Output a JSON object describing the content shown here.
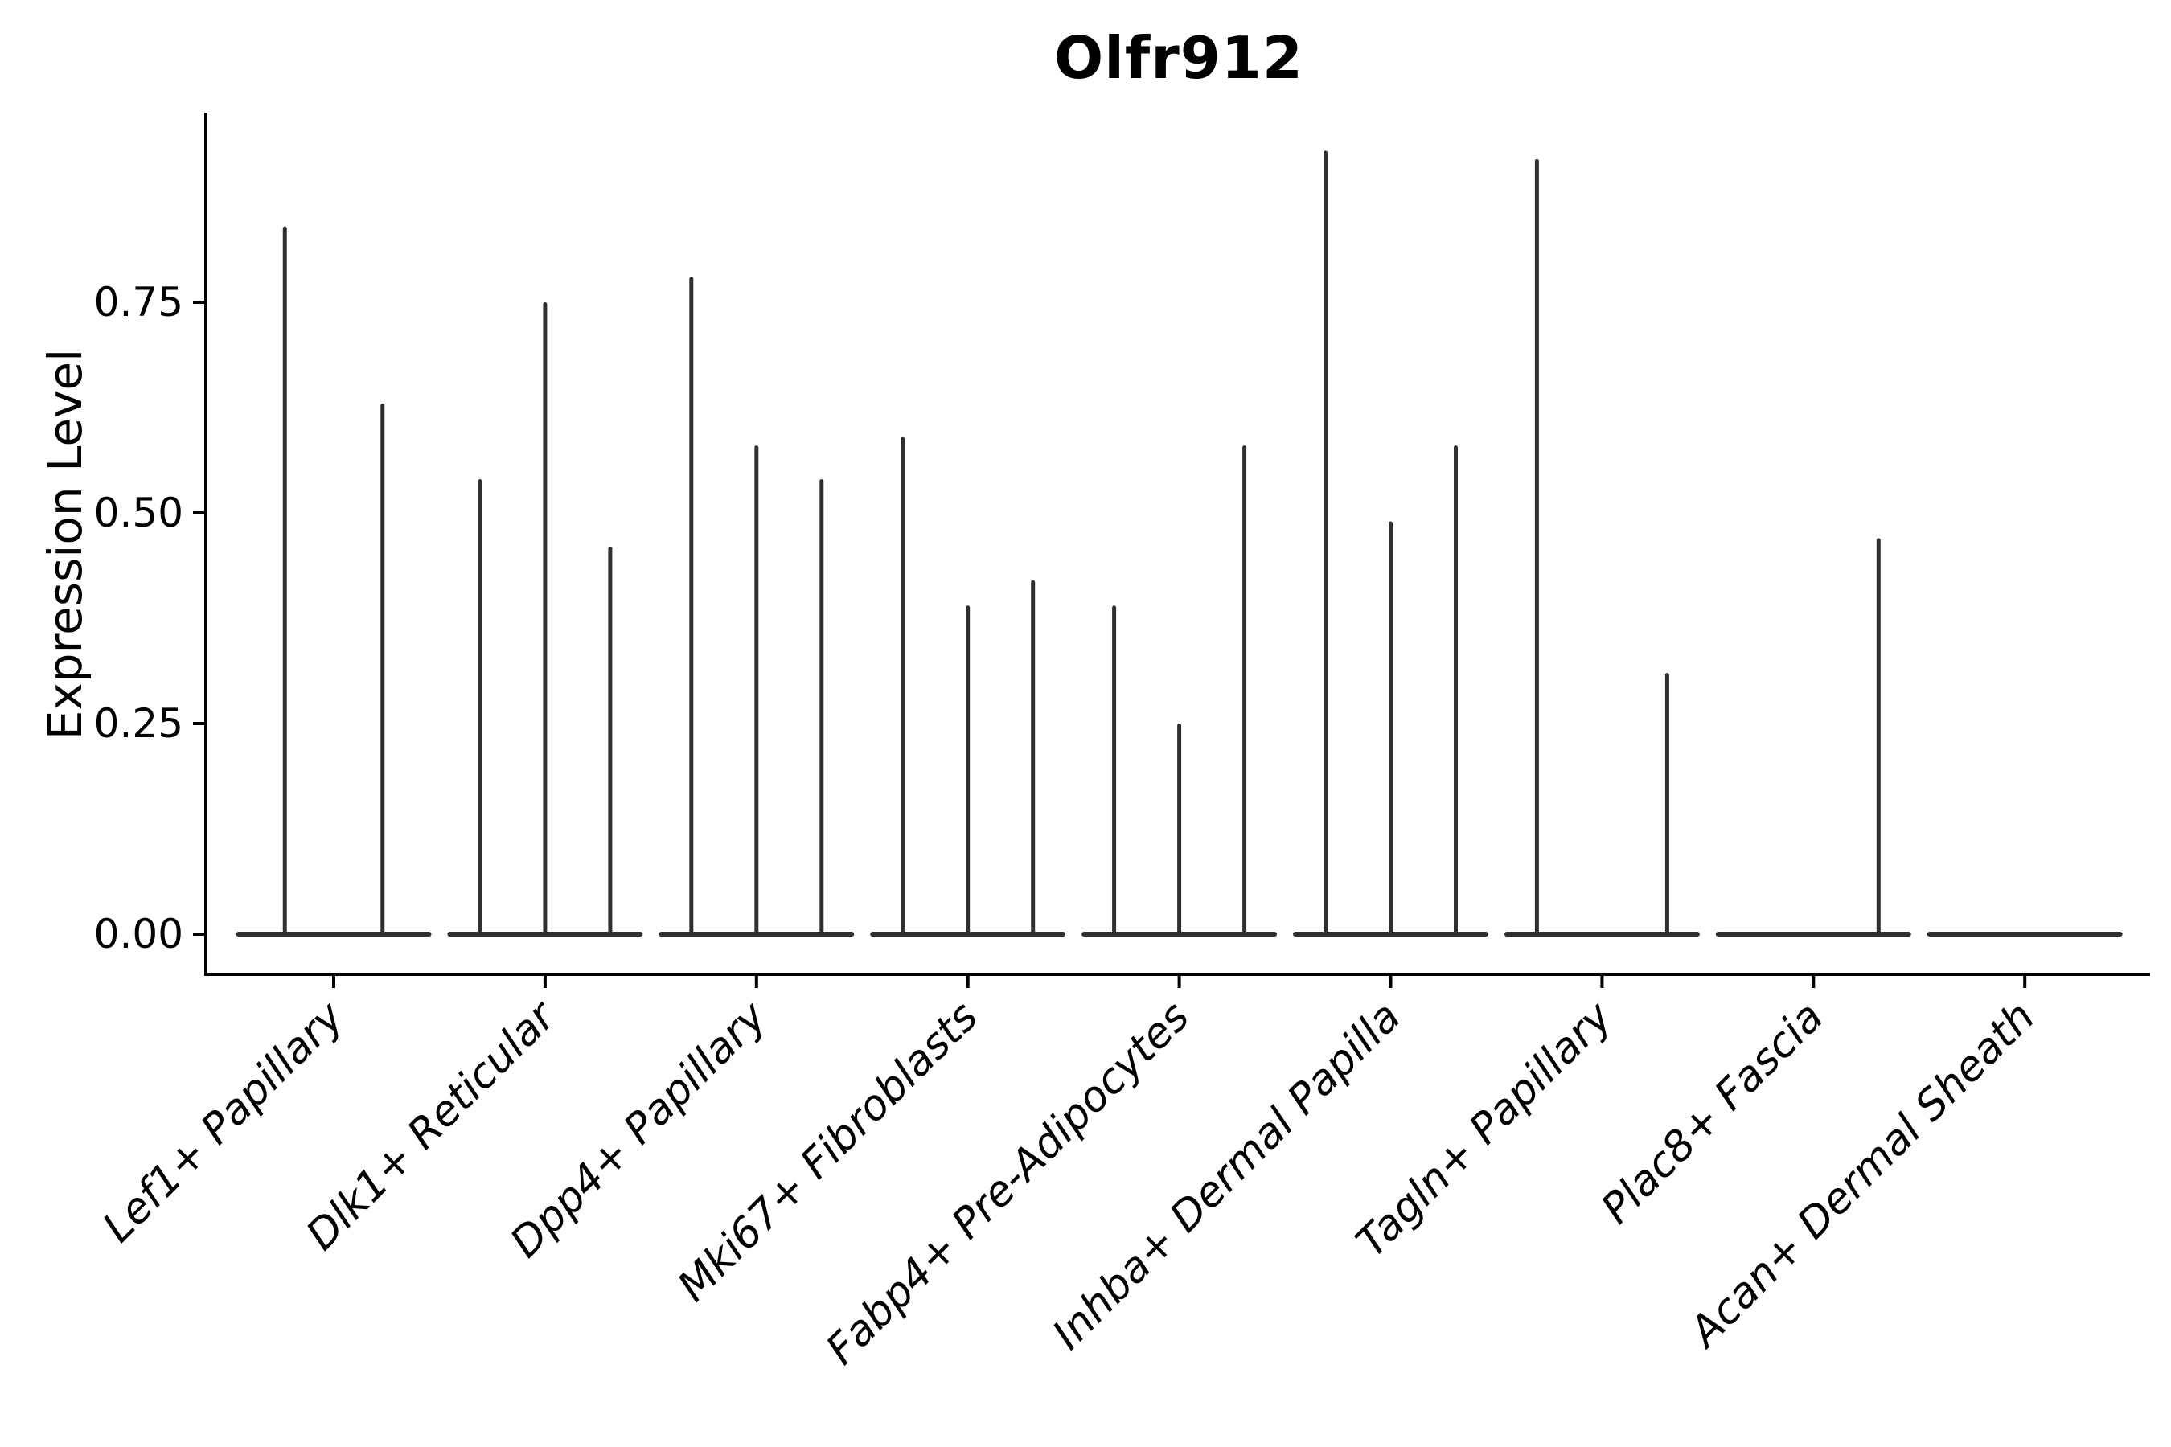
{
  "title": "Olfr912",
  "y_axis": {
    "label": "Expression Level",
    "ticks": [
      "0.00",
      "0.25",
      "0.50",
      "0.75"
    ],
    "tick_values": [
      0,
      0.25,
      0.5,
      0.75
    ]
  },
  "chart_data": {
    "type": "violin",
    "title": "Olfr912",
    "xlabel": "",
    "ylabel": "Expression Level",
    "ylim": [
      -0.05,
      0.98
    ],
    "yticks": [
      0,
      0.25,
      0.5,
      0.75
    ],
    "ytick_labels": [
      "0.00",
      "0.25",
      "0.50",
      "0.75"
    ],
    "grid": false,
    "legend": "none",
    "spines": [
      "left",
      "bottom"
    ],
    "categories": [
      "Lef1+ Papillary",
      "Dlk1+ Reticular",
      "Dpp4+ Papillary",
      "Mki67+ Fibroblasts",
      "Fabp4+ Pre-Adipocytes",
      "Inhba+ Dermal Papilla",
      "Tagln+ Papillary",
      "Plac8+ Fascia",
      "Acan+ Dermal Sheath"
    ],
    "series": [
      {
        "category": "Lef1+ Papillary",
        "violin_max_expression": [
          0.84,
          0.63
        ]
      },
      {
        "category": "Dlk1+ Reticular",
        "violin_max_expression": [
          0.54,
          0.75,
          0.46
        ]
      },
      {
        "category": "Dpp4+ Papillary",
        "violin_max_expression": [
          0.78,
          0.58,
          0.54
        ]
      },
      {
        "category": "Mki67+ Fibroblasts",
        "violin_max_expression": [
          0.59,
          0.39,
          0.42
        ]
      },
      {
        "category": "Fabp4+ Pre-Adipocytes",
        "violin_max_expression": [
          0.39,
          0.25,
          0.58
        ]
      },
      {
        "category": "Inhba+ Dermal Papilla",
        "violin_max_expression": [
          0.93,
          0.49,
          0.58
        ]
      },
      {
        "category": "Tagln+ Papillary",
        "violin_max_expression": [
          0.92,
          0,
          0.31
        ]
      },
      {
        "category": "Plac8+ Fascia",
        "violin_max_expression": [
          0,
          0,
          0.47
        ]
      },
      {
        "category": "Acan+ Dermal Sheath",
        "violin_max_expression": [
          0,
          0,
          0
        ]
      }
    ],
    "colors": {
      "violin_line": "#2f2f2f",
      "axis": "#000000",
      "text": "#000000",
      "background": "#ffffff"
    }
  }
}
